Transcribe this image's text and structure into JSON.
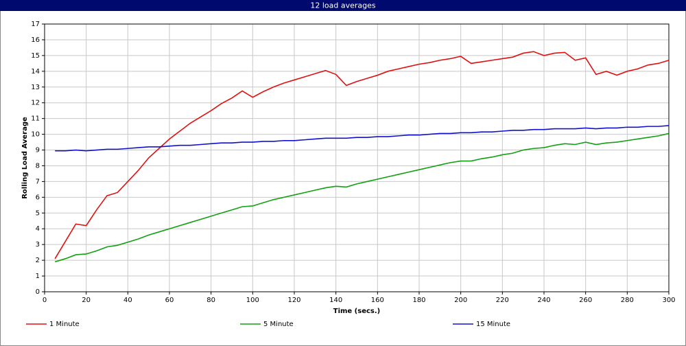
{
  "chart_data": {
    "type": "line",
    "title": "12 load averages",
    "x_label": "Time (secs.)",
    "y_label": "Rolling Load Average",
    "x": [
      5,
      10,
      15,
      20,
      25,
      30,
      35,
      40,
      45,
      50,
      55,
      60,
      65,
      70,
      75,
      80,
      85,
      90,
      95,
      100,
      105,
      110,
      115,
      120,
      125,
      130,
      135,
      140,
      145,
      150,
      155,
      160,
      165,
      170,
      175,
      180,
      185,
      190,
      195,
      200,
      205,
      210,
      215,
      220,
      225,
      230,
      235,
      240,
      245,
      250,
      255,
      260,
      265,
      270,
      275,
      280,
      285,
      290,
      295,
      300
    ],
    "series": [
      {
        "name": "1 Minute",
        "color": "#e01010",
        "values": [
          2.1,
          3.2,
          4.3,
          4.2,
          5.2,
          6.1,
          6.3,
          7.0,
          7.7,
          8.5,
          9.1,
          9.7,
          10.2,
          10.7,
          11.1,
          11.5,
          11.95,
          12.3,
          12.75,
          12.35,
          12.7,
          13.0,
          13.25,
          13.45,
          13.65,
          13.85,
          14.05,
          13.8,
          13.1,
          13.35,
          13.55,
          13.75,
          14.0,
          14.15,
          14.3,
          14.45,
          14.55,
          14.7,
          14.8,
          14.95,
          14.5,
          14.6,
          14.7,
          14.8,
          14.9,
          15.15,
          15.25,
          15.0,
          15.15,
          15.2,
          14.7,
          14.85,
          13.8,
          14.0,
          13.75,
          14.0,
          14.15,
          14.4,
          14.5,
          14.7
        ]
      },
      {
        "name": "5 Minute",
        "color": "#10a010",
        "values": [
          1.9,
          2.1,
          2.35,
          2.4,
          2.6,
          2.85,
          2.95,
          3.15,
          3.35,
          3.6,
          3.8,
          4.0,
          4.2,
          4.4,
          4.6,
          4.8,
          5.0,
          5.2,
          5.4,
          5.45,
          5.65,
          5.85,
          6.0,
          6.15,
          6.3,
          6.45,
          6.6,
          6.7,
          6.65,
          6.85,
          7.0,
          7.15,
          7.3,
          7.45,
          7.6,
          7.75,
          7.9,
          8.05,
          8.2,
          8.3,
          8.3,
          8.45,
          8.55,
          8.7,
          8.8,
          9.0,
          9.1,
          9.15,
          9.3,
          9.4,
          9.35,
          9.5,
          9.35,
          9.45,
          9.5,
          9.6,
          9.7,
          9.8,
          9.9,
          10.05
        ]
      },
      {
        "name": "15 Minute",
        "color": "#1010d0",
        "values": [
          8.95,
          8.95,
          9.0,
          8.95,
          9.0,
          9.05,
          9.05,
          9.1,
          9.15,
          9.2,
          9.2,
          9.25,
          9.3,
          9.3,
          9.35,
          9.4,
          9.45,
          9.45,
          9.5,
          9.5,
          9.55,
          9.55,
          9.6,
          9.6,
          9.65,
          9.7,
          9.75,
          9.75,
          9.75,
          9.8,
          9.8,
          9.85,
          9.85,
          9.9,
          9.95,
          9.95,
          10.0,
          10.05,
          10.05,
          10.1,
          10.1,
          10.15,
          10.15,
          10.2,
          10.25,
          10.25,
          10.3,
          10.3,
          10.35,
          10.35,
          10.35,
          10.4,
          10.35,
          10.4,
          10.4,
          10.45,
          10.45,
          10.5,
          10.5,
          10.55
        ]
      }
    ],
    "xlim": [
      0,
      300
    ],
    "xticks": [
      0,
      20,
      40,
      60,
      80,
      100,
      120,
      140,
      160,
      180,
      200,
      220,
      240,
      260,
      280,
      300
    ],
    "ylim": [
      0,
      17
    ],
    "yticks": [
      0,
      1,
      2,
      3,
      4,
      5,
      6,
      7,
      8,
      9,
      10,
      11,
      12,
      13,
      14,
      15,
      16,
      17
    ],
    "grid": true,
    "legend": "bottom"
  }
}
